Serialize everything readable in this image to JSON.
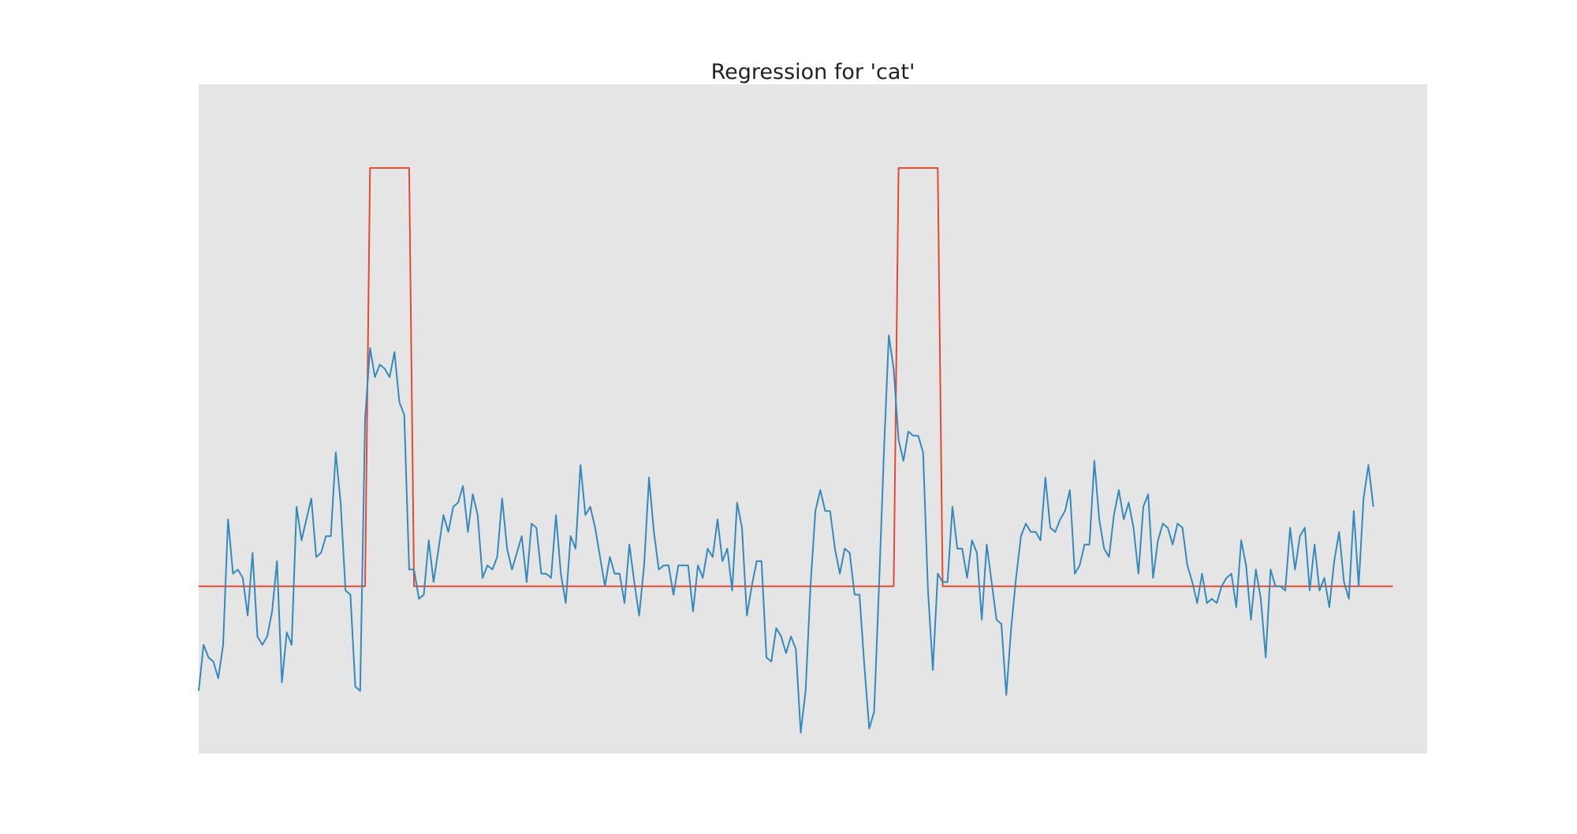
{
  "chart_data": {
    "type": "line",
    "title": "Regression for 'cat'",
    "xlabel": "",
    "ylabel": "",
    "grid": false,
    "background_color": "#e5e5e5",
    "xlim": [
      0,
      251
    ],
    "ylim": [
      -0.4,
      1.2
    ],
    "x_start": 0,
    "x_step": 1,
    "series": [
      {
        "role": "target",
        "color": "#e24a33",
        "values": [
          0,
          0,
          0,
          0,
          0,
          0,
          0,
          0,
          0,
          0,
          0,
          0,
          0,
          0,
          0,
          0,
          0,
          0,
          0,
          0,
          0,
          0,
          0,
          0,
          0,
          0,
          0,
          0,
          0,
          0,
          0,
          0,
          0,
          0,
          0,
          1,
          1,
          1,
          1,
          1,
          1,
          1,
          1,
          1,
          0,
          0,
          0,
          0,
          0,
          0,
          0,
          0,
          0,
          0,
          0,
          0,
          0,
          0,
          0,
          0,
          0,
          0,
          0,
          0,
          0,
          0,
          0,
          0,
          0,
          0,
          0,
          0,
          0,
          0,
          0,
          0,
          0,
          0,
          0,
          0,
          0,
          0,
          0,
          0,
          0,
          0,
          0,
          0,
          0,
          0,
          0,
          0,
          0,
          0,
          0,
          0,
          0,
          0,
          0,
          0,
          0,
          0,
          0,
          0,
          0,
          0,
          0,
          0,
          0,
          0,
          0,
          0,
          0,
          0,
          0,
          0,
          0,
          0,
          0,
          0,
          0,
          0,
          0,
          0,
          0,
          0,
          0,
          0,
          0,
          0,
          0,
          0,
          0,
          0,
          0,
          0,
          0,
          0,
          0,
          0,
          0,
          0,
          0,
          1,
          1,
          1,
          1,
          1,
          1,
          1,
          1,
          1,
          0,
          0,
          0,
          0,
          0,
          0,
          0,
          0,
          0,
          0,
          0,
          0,
          0,
          0,
          0,
          0,
          0,
          0,
          0,
          0,
          0,
          0,
          0,
          0,
          0,
          0,
          0,
          0,
          0,
          0,
          0,
          0,
          0,
          0,
          0,
          0,
          0,
          0,
          0,
          0,
          0,
          0,
          0,
          0,
          0,
          0,
          0,
          0,
          0,
          0,
          0,
          0,
          0,
          0,
          0,
          0,
          0,
          0,
          0,
          0,
          0,
          0,
          0,
          0,
          0,
          0,
          0,
          0,
          0,
          0,
          0,
          0,
          0,
          0,
          0,
          0,
          0,
          0,
          0,
          0,
          0,
          0,
          0,
          0,
          0,
          0,
          0,
          0,
          0,
          0,
          0,
          0,
          0
        ]
      },
      {
        "role": "prediction",
        "color": "#348abd",
        "values": [
          -0.25,
          -0.14,
          -0.17,
          -0.18,
          -0.22,
          -0.14,
          0.16,
          0.03,
          0.04,
          0.02,
          -0.07,
          0.08,
          -0.12,
          -0.14,
          -0.12,
          -0.06,
          0.06,
          -0.23,
          -0.11,
          -0.14,
          0.19,
          0.11,
          0.16,
          0.21,
          0.07,
          0.08,
          0.12,
          0.12,
          0.32,
          0.2,
          -0.01,
          -0.02,
          -0.24,
          -0.25,
          0.4,
          0.57,
          0.5,
          0.53,
          0.52,
          0.5,
          0.56,
          0.44,
          0.41,
          0.04,
          0.04,
          -0.03,
          -0.02,
          0.11,
          0.01,
          0.09,
          0.17,
          0.13,
          0.19,
          0.2,
          0.24,
          0.13,
          0.22,
          0.17,
          0.02,
          0.05,
          0.04,
          0.07,
          0.21,
          0.09,
          0.04,
          0.08,
          0.12,
          0.01,
          0.15,
          0.14,
          0.03,
          0.03,
          0.02,
          0.17,
          0.03,
          -0.04,
          0.12,
          0.09,
          0.29,
          0.17,
          0.19,
          0.14,
          0.07,
          0.0,
          0.07,
          0.03,
          0.03,
          -0.04,
          0.1,
          0.01,
          -0.07,
          0.05,
          0.26,
          0.13,
          0.04,
          0.05,
          0.05,
          -0.02,
          0.05,
          0.05,
          0.05,
          -0.06,
          0.05,
          0.02,
          0.09,
          0.07,
          0.16,
          0.06,
          0.09,
          -0.01,
          0.2,
          0.14,
          -0.07,
          0.0,
          0.06,
          0.06,
          -0.17,
          -0.18,
          -0.1,
          -0.12,
          -0.16,
          -0.12,
          -0.15,
          -0.35,
          -0.25,
          0.0,
          0.18,
          0.23,
          0.18,
          0.18,
          0.09,
          0.03,
          0.09,
          0.08,
          -0.02,
          -0.02,
          -0.19,
          -0.34,
          -0.3,
          0.0,
          0.32,
          0.6,
          0.52,
          0.35,
          0.3,
          0.37,
          0.36,
          0.36,
          0.32,
          -0.01,
          -0.2,
          0.03,
          0.01,
          0.01,
          0.19,
          0.09,
          0.09,
          0.02,
          0.11,
          0.08,
          -0.08,
          0.1,
          0.01,
          -0.08,
          -0.09,
          -0.26,
          -0.1,
          0.02,
          0.12,
          0.15,
          0.13,
          0.13,
          0.11,
          0.26,
          0.14,
          0.13,
          0.16,
          0.18,
          0.23,
          0.03,
          0.05,
          0.1,
          0.1,
          0.3,
          0.16,
          0.09,
          0.07,
          0.17,
          0.23,
          0.16,
          0.2,
          0.14,
          0.03,
          0.19,
          0.22,
          0.02,
          0.11,
          0.15,
          0.14,
          0.1,
          0.15,
          0.14,
          0.05,
          0.01,
          -0.04,
          0.03,
          -0.04,
          -0.03,
          -0.04,
          0.0,
          0.02,
          0.03,
          -0.05,
          0.11,
          0.05,
          -0.08,
          0.04,
          -0.03,
          -0.17,
          0.04,
          0.0,
          0.0,
          -0.01,
          0.14,
          0.04,
          0.12,
          0.14,
          -0.01,
          0.1,
          -0.01,
          0.02,
          -0.05,
          0.06,
          0.13,
          0.01,
          -0.03,
          0.18,
          0.0,
          0.21,
          0.29,
          0.19
        ]
      }
    ]
  }
}
